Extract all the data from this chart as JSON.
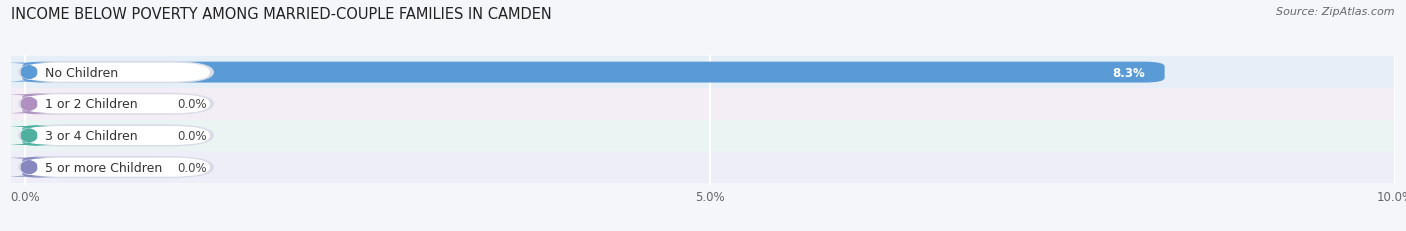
{
  "title": "INCOME BELOW POVERTY AMONG MARRIED-COUPLE FAMILIES IN CAMDEN",
  "source": "Source: ZipAtlas.com",
  "categories": [
    "No Children",
    "1 or 2 Children",
    "3 or 4 Children",
    "5 or more Children"
  ],
  "values": [
    8.3,
    0.0,
    0.0,
    0.0
  ],
  "bar_colors": [
    "#5b9bd5",
    "#b8a0c8",
    "#5bbdb0",
    "#9090c8"
  ],
  "label_accent_colors": [
    "#5b9bd5",
    "#b090c0",
    "#50b0a0",
    "#8888c0"
  ],
  "xlim_max": 10.0,
  "xticks": [
    0.0,
    5.0,
    10.0
  ],
  "xtick_labels": [
    "0.0%",
    "5.0%",
    "10.0%"
  ],
  "row_bg_colors": [
    "#e6eef8",
    "#f3eef5",
    "#eaf5f3",
    "#eeeef8"
  ],
  "fig_bg_color": "#f5f6fa",
  "title_fontsize": 10.5,
  "label_fontsize": 9,
  "value_fontsize": 8.5,
  "source_fontsize": 8,
  "bar_height": 0.62
}
